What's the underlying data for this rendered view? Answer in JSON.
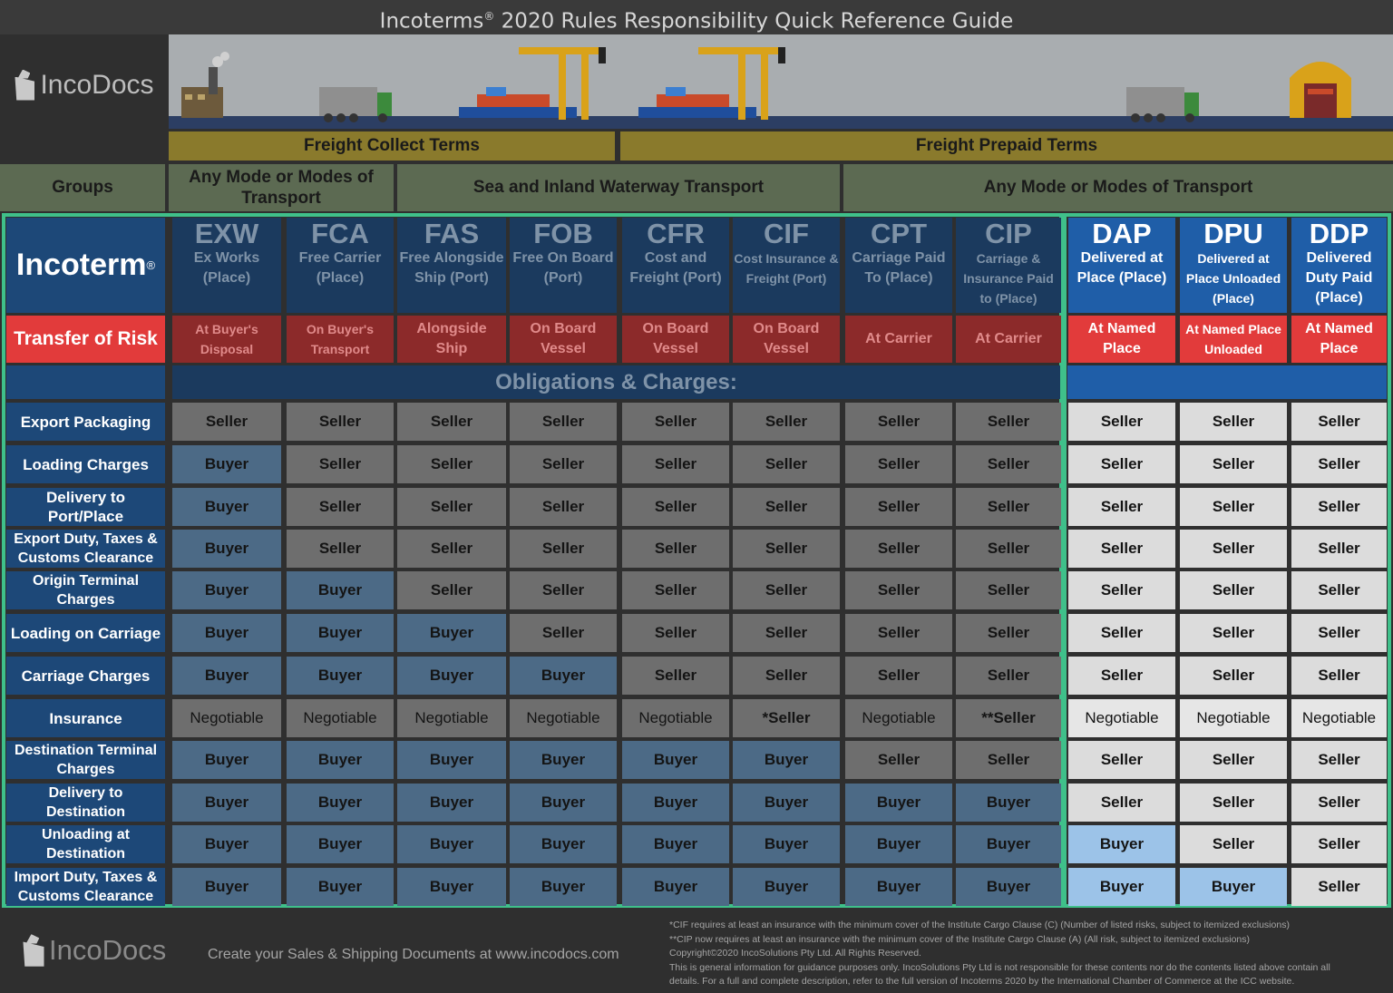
{
  "title": {
    "pre": "Incoterms",
    "mark": "®",
    "post": "2020 Rules Responsibility Quick Reference Guide"
  },
  "brand": {
    "name": "IncoDocs"
  },
  "bands": {
    "freight_collect": "Freight Collect Terms",
    "freight_prepaid": "Freight Prepaid Terms"
  },
  "groups": {
    "label": "Groups",
    "any_mode_1": "Any Mode or Modes of Transport",
    "sea": "Sea and Inland Waterway Transport",
    "any_mode_2": "Any Mode or Modes of Transport"
  },
  "incoterm_label": "Incoterm",
  "incoterm_mark": "®",
  "risk_label": "Transfer of Risk",
  "obligations_title": "Obligations & Charges:",
  "terms": [
    {
      "code": "EXW",
      "name": "Ex Works (Place)",
      "risk": "At Buyer's Disposal"
    },
    {
      "code": "FCA",
      "name": "Free Carrier (Place)",
      "risk": "On Buyer's Transport"
    },
    {
      "code": "FAS",
      "name": "Free Alongside Ship (Port)",
      "risk": "Alongside Ship"
    },
    {
      "code": "FOB",
      "name": "Free On Board (Port)",
      "risk": "On Board Vessel"
    },
    {
      "code": "CFR",
      "name": "Cost and Freight (Port)",
      "risk": "On Board Vessel"
    },
    {
      "code": "CIF",
      "name": "Cost Insurance & Freight (Port)",
      "risk": "On Board Vessel"
    },
    {
      "code": "CPT",
      "name": "Carriage Paid To (Place)",
      "risk": "At Carrier"
    },
    {
      "code": "CIP",
      "name": "Carriage & Insurance Paid to (Place)",
      "risk": "At Carrier"
    },
    {
      "code": "DAP",
      "name": "Delivered at Place (Place)",
      "risk": "At Named Place"
    },
    {
      "code": "DPU",
      "name": "Delivered at Place Unloaded (Place)",
      "risk": "At Named Place Unloaded"
    },
    {
      "code": "DDP",
      "name": "Delivered Duty Paid (Place)",
      "risk": "At Named Place"
    }
  ],
  "rows": [
    {
      "label": "Export Packaging",
      "values": [
        "Seller",
        "Seller",
        "Seller",
        "Seller",
        "Seller",
        "Seller",
        "Seller",
        "Seller",
        "Seller",
        "Seller",
        "Seller"
      ]
    },
    {
      "label": "Loading Charges",
      "values": [
        "Buyer",
        "Seller",
        "Seller",
        "Seller",
        "Seller",
        "Seller",
        "Seller",
        "Seller",
        "Seller",
        "Seller",
        "Seller"
      ]
    },
    {
      "label": "Delivery to Port/Place",
      "values": [
        "Buyer",
        "Seller",
        "Seller",
        "Seller",
        "Seller",
        "Seller",
        "Seller",
        "Seller",
        "Seller",
        "Seller",
        "Seller"
      ]
    },
    {
      "label": "Export Duty, Taxes & Customs Clearance",
      "values": [
        "Buyer",
        "Seller",
        "Seller",
        "Seller",
        "Seller",
        "Seller",
        "Seller",
        "Seller",
        "Seller",
        "Seller",
        "Seller"
      ]
    },
    {
      "label": "Origin Terminal Charges",
      "values": [
        "Buyer",
        "Buyer",
        "Seller",
        "Seller",
        "Seller",
        "Seller",
        "Seller",
        "Seller",
        "Seller",
        "Seller",
        "Seller"
      ]
    },
    {
      "label": "Loading on Carriage",
      "values": [
        "Buyer",
        "Buyer",
        "Buyer",
        "Seller",
        "Seller",
        "Seller",
        "Seller",
        "Seller",
        "Seller",
        "Seller",
        "Seller"
      ]
    },
    {
      "label": "Carriage Charges",
      "values": [
        "Buyer",
        "Buyer",
        "Buyer",
        "Buyer",
        "Seller",
        "Seller",
        "Seller",
        "Seller",
        "Seller",
        "Seller",
        "Seller"
      ]
    },
    {
      "label": "Insurance",
      "values": [
        "Negotiable",
        "Negotiable",
        "Negotiable",
        "Negotiable",
        "Negotiable",
        "*Seller",
        "Negotiable",
        "**Seller",
        "Negotiable",
        "Negotiable",
        "Negotiable"
      ]
    },
    {
      "label": "Destination Terminal Charges",
      "values": [
        "Buyer",
        "Buyer",
        "Buyer",
        "Buyer",
        "Buyer",
        "Buyer",
        "Seller",
        "Seller",
        "Seller",
        "Seller",
        "Seller"
      ]
    },
    {
      "label": "Delivery to Destination",
      "values": [
        "Buyer",
        "Buyer",
        "Buyer",
        "Buyer",
        "Buyer",
        "Buyer",
        "Buyer",
        "Buyer",
        "Seller",
        "Seller",
        "Seller"
      ]
    },
    {
      "label": "Unloading at Destination",
      "values": [
        "Buyer",
        "Buyer",
        "Buyer",
        "Buyer",
        "Buyer",
        "Buyer",
        "Buyer",
        "Buyer",
        "Buyer",
        "Seller",
        "Seller"
      ]
    },
    {
      "label": "Import Duty, Taxes & Customs Clearance",
      "values": [
        "Buyer",
        "Buyer",
        "Buyer",
        "Buyer",
        "Buyer",
        "Buyer",
        "Buyer",
        "Buyer",
        "Buyer",
        "Buyer",
        "Seller"
      ]
    }
  ],
  "footer": {
    "tagline": "Create your Sales & Shipping Documents at www.incodocs.com",
    "notes": [
      "*CIF requires at least an insurance with the minimum cover of the Institute Cargo Clause (C) (Number of listed risks, subject to itemized exclusions)",
      "**CIP now requires at least an insurance with the minimum cover of the Institute Cargo Clause (A) (All risk, subject to itemized exclusions)",
      "Copyright©2020 IncoSolutions Pty Ltd. All Rights Reserved.",
      "This is general information for guidance purposes only.  IncoSolutions Pty Ltd is not responsible for these contents nor do the contents listed above contain all",
      "details.  For a full and complete description, refer to the full version of Incoterms    2020 by the International Chamber of Commerce at the ICC website."
    ]
  },
  "colors": {
    "header_dark": "#1b3a5e",
    "header_bright": "#1f5ea8",
    "risk_dim": "#8c2a2a",
    "risk_bright": "#e23b3b",
    "frame_green": "#3fc08a",
    "buyer_dim": "#4c6a86",
    "seller_dim": "#6e6e6e",
    "buyer_bright": "#9cc3e8",
    "seller_bright": "#dcdcdc"
  }
}
